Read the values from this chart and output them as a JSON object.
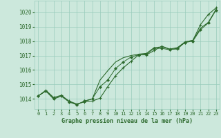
{
  "x": [
    0,
    1,
    2,
    3,
    4,
    5,
    6,
    7,
    8,
    9,
    10,
    11,
    12,
    13,
    14,
    15,
    16,
    17,
    18,
    19,
    20,
    21,
    22,
    23
  ],
  "line1": [
    1014.2,
    1014.6,
    1014.1,
    1014.25,
    1013.85,
    1013.65,
    1013.8,
    1013.85,
    1014.05,
    1014.85,
    1015.6,
    1016.15,
    1016.6,
    1017.05,
    1017.05,
    1017.35,
    1017.65,
    1017.45,
    1017.45,
    1017.95,
    1018.05,
    1019.15,
    1019.85,
    1020.3
  ],
  "line2": [
    1014.2,
    1014.55,
    1014.0,
    1014.2,
    1013.8,
    1013.6,
    1013.85,
    1014.0,
    1015.3,
    1015.95,
    1016.55,
    1016.85,
    1017.0,
    1017.1,
    1017.15,
    1017.55,
    1017.6,
    1017.45,
    1017.55,
    1017.95,
    1018.05,
    1018.9,
    1019.3,
    1020.2
  ],
  "line3": [
    1014.2,
    1014.55,
    1014.0,
    1014.2,
    1013.8,
    1013.6,
    1013.85,
    1014.0,
    1014.85,
    1015.3,
    1016.1,
    1016.55,
    1016.9,
    1017.05,
    1017.1,
    1017.5,
    1017.5,
    1017.4,
    1017.5,
    1017.9,
    1018.0,
    1018.8,
    1019.25,
    1020.15
  ],
  "line_color": "#2d6a2d",
  "bg_color": "#cce8dc",
  "grid_color": "#99ccbb",
  "ylabel_ticks": [
    1014,
    1015,
    1016,
    1017,
    1018,
    1019,
    1020
  ],
  "xlabel": "Graphe pression niveau de la mer (hPa)",
  "ylim": [
    1013.3,
    1020.8
  ],
  "xlim": [
    -0.5,
    23.5
  ],
  "xlabel_color": "#2d6a2d",
  "tick_color": "#2d6a2d"
}
